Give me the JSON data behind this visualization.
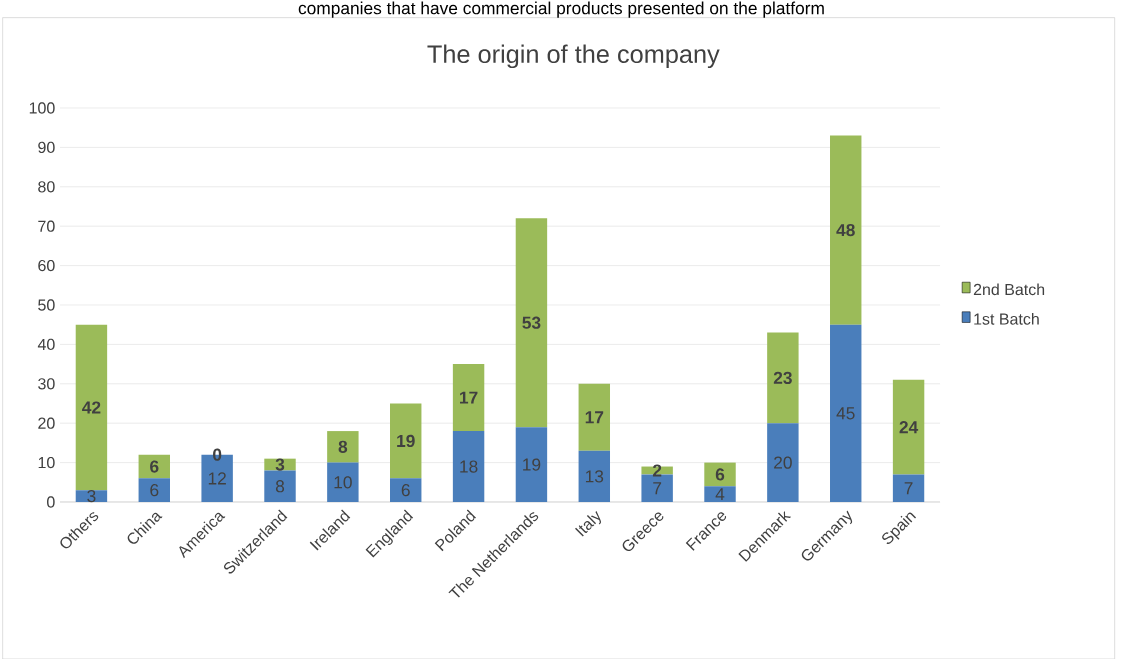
{
  "chart_data": {
    "type": "bar",
    "title": "The origin of the company",
    "stacked": true,
    "categories": [
      "Others",
      "China",
      "America",
      "Switzerland",
      "Ireland",
      "England",
      "Poland",
      "The Netherlands",
      "Italy",
      "Greece",
      "France",
      "Denmark",
      "Germany",
      "Spain"
    ],
    "series": [
      {
        "name": "1st Batch",
        "color": "#4a7ebb",
        "values": [
          3,
          6,
          12,
          8,
          10,
          6,
          18,
          19,
          13,
          7,
          4,
          20,
          45,
          7
        ]
      },
      {
        "name": "2nd Batch",
        "color": "#9bbb59",
        "values": [
          42,
          6,
          0,
          3,
          8,
          19,
          17,
          53,
          17,
          2,
          6,
          23,
          48,
          24
        ]
      }
    ],
    "ylim": [
      0,
      100
    ],
    "yticks": [
      0,
      10,
      20,
      30,
      40,
      50,
      60,
      70,
      80,
      90,
      100
    ],
    "grid": "y",
    "legend": "right",
    "data_labels": true,
    "annotations": [
      "companies that have commercial products presented on the platform"
    ]
  }
}
